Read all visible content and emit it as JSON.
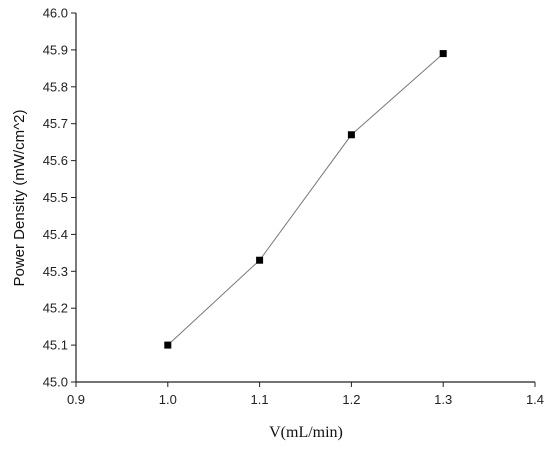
{
  "chart_data": {
    "type": "line",
    "title": "",
    "xlabel": "V(mL/min)",
    "ylabel": "Power Density (mW/cm^2)",
    "xlim": [
      0.9,
      1.4
    ],
    "ylim": [
      45.0,
      46.0
    ],
    "x_ticks": [
      "0.9",
      "1.0",
      "1.1",
      "1.2",
      "1.3",
      "1.4"
    ],
    "y_ticks": [
      "45.0",
      "45.1",
      "45.2",
      "45.3",
      "45.4",
      "45.5",
      "45.6",
      "45.7",
      "45.8",
      "45.9",
      "46.0"
    ],
    "grid": false,
    "marker": "square",
    "series": [
      {
        "x": [
          1.0,
          1.1,
          1.2,
          1.3
        ],
        "y": [
          45.1,
          45.33,
          45.67,
          45.89
        ],
        "marker_color": "#000000",
        "line_color": "#7a7a7a"
      }
    ]
  }
}
